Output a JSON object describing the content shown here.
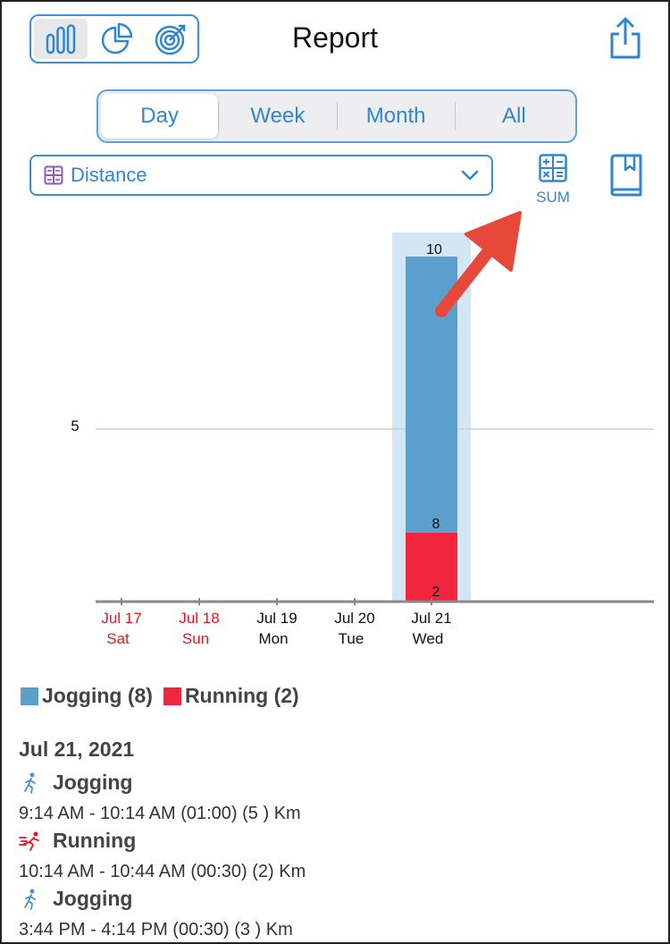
{
  "header": {
    "title": "Report",
    "view_modes": [
      "bar-chart-icon",
      "pie-chart-icon",
      "target-icon"
    ],
    "active_view": "bar-chart-icon"
  },
  "period": {
    "options": [
      "Day",
      "Week",
      "Month",
      "All"
    ],
    "selected": "Day"
  },
  "metric": {
    "icon": "table-icon",
    "value": "Distance"
  },
  "sum_button": {
    "label": "SUM"
  },
  "colors": {
    "accent": "#2f86d2",
    "jogging": "#5b9fcc",
    "running": "#f1263e",
    "weekend": "#e8141e",
    "highlight": "#d4e6f4"
  },
  "chart_data": {
    "type": "bar",
    "stacked": true,
    "categories": [
      "Jul 17",
      "Jul 18",
      "Jul 19",
      "Jul 20",
      "Jul 21"
    ],
    "weekdays": [
      "Sat",
      "Sun",
      "Mon",
      "Tue",
      "Wed"
    ],
    "weekend_flags": [
      true,
      true,
      false,
      false,
      false
    ],
    "series": [
      {
        "name": "Running",
        "values": [
          0,
          0,
          0,
          0,
          2
        ]
      },
      {
        "name": "Jogging",
        "values": [
          0,
          0,
          0,
          0,
          8
        ]
      }
    ],
    "y_tick": "5",
    "ylim": [
      0,
      10
    ],
    "selected_category": "Jul 21",
    "bar_labels": {
      "running": "2",
      "jogging_top": "8",
      "total": "10"
    }
  },
  "legend": [
    {
      "label": "Jogging (8)",
      "color": "#5b9fcc"
    },
    {
      "label": "Running (2)",
      "color": "#f1263e"
    }
  ],
  "details": {
    "date": "Jul 21, 2021",
    "entries": [
      {
        "name": "Jogging",
        "icon": "jogging-icon",
        "time": "9:14 AM - 10:14 AM (01:00) (5 ) Km"
      },
      {
        "name": "Running",
        "icon": "running-icon",
        "time": "10:14 AM - 10:44 AM (00:30) (2) Km"
      },
      {
        "name": "Jogging",
        "icon": "jogging-icon",
        "time": "3:44 PM - 4:14 PM (00:30) (3 ) Km"
      }
    ]
  }
}
